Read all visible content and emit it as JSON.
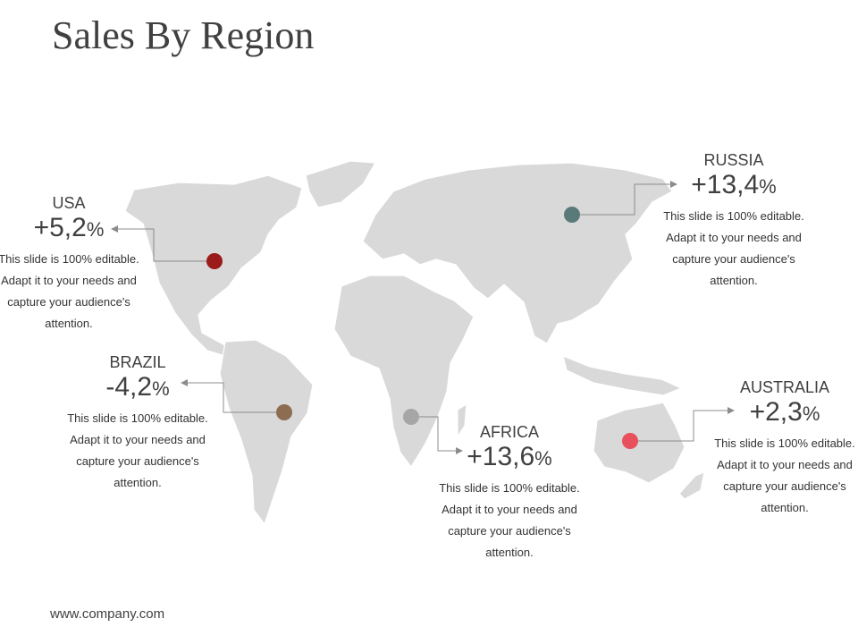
{
  "title": "Sales By Region",
  "footer": "www.company.com",
  "regions": [
    {
      "name": "USA",
      "value": "+5,2",
      "unit": "%",
      "desc": "This slide is 100% editable. Adapt it to your needs and capture your audience's attention.",
      "color": "#9b1b1b"
    },
    {
      "name": "BRAZIL",
      "value": "-4,2",
      "unit": "%",
      "desc": "This slide is 100% editable. Adapt it to your needs and capture your audience's attention.",
      "color": "#8c6d52"
    },
    {
      "name": "AFRICA",
      "value": "+13,6",
      "unit": "%",
      "desc": "This slide is 100% editable. Adapt it to your needs and capture your audience's attention.",
      "color": "#a6a6a6"
    },
    {
      "name": "RUSSIA",
      "value": "+13,4",
      "unit": "%",
      "desc": "This slide is 100% editable. Adapt it to your needs and capture your audience's attention.",
      "color": "#5a7a7a"
    },
    {
      "name": "AUSTRALIA",
      "value": "+2,3",
      "unit": "%",
      "desc": "This slide is 100% editable. Adapt it to your needs and capture your audience's attention.",
      "color": "#e8505b"
    }
  ]
}
